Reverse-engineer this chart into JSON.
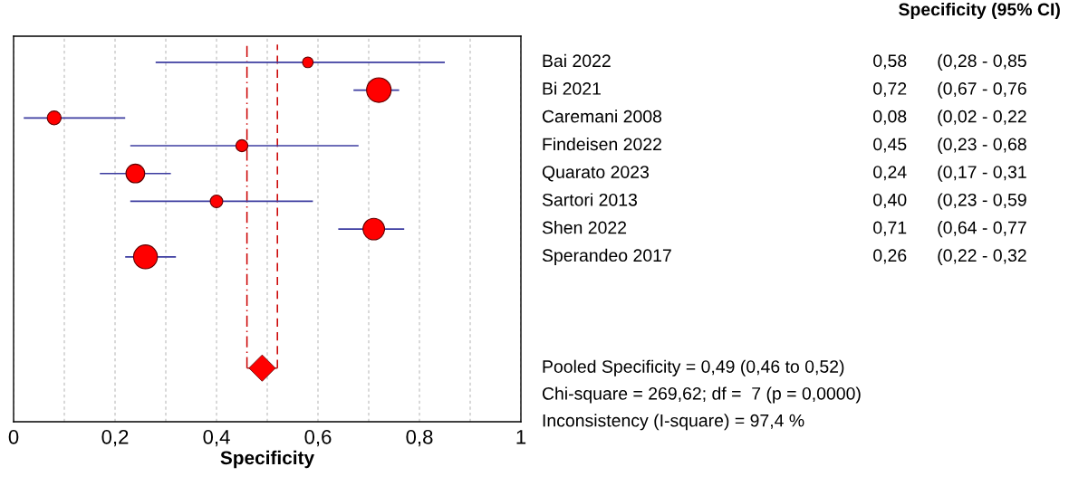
{
  "chart_data": {
    "type": "bubble",
    "orientation": "horizontal",
    "xlabel": "Specificity",
    "categories": [
      "Bai 2022",
      "Bi 2021",
      "Caremani 2008",
      "Findeisen 2022",
      "Quarato 2023",
      "Sartori 2013",
      "Shen 2022",
      "Sperandeo 2017",
      null,
      null,
      null,
      null
    ],
    "series": [
      {
        "color": "#ff0000",
        "values": [
          0.58,
          0.72,
          0.08,
          0.45,
          0.24,
          0.4,
          0.71,
          0.26,
          null,
          null,
          null,
          null
        ],
        "errors": [
          [
            0.28,
            0.85
          ],
          [
            0.67,
            0.76
          ],
          [
            0.02,
            0.22
          ],
          [
            0.23,
            0.68
          ],
          [
            0.17,
            0.31
          ],
          [
            0.23,
            0.59
          ],
          [
            0.64,
            0.77
          ],
          [
            0.22,
            0.32
          ],
          null,
          null,
          null,
          null
        ],
        "sizes": [
          0.19,
          1,
          0.32,
          0.24,
          0.58,
          0.26,
          0.77,
          0.95,
          null,
          null,
          null,
          null
        ],
        "value_labels": [
          "0,58",
          "0,72",
          "0,08",
          "0,45",
          "0,24",
          "0,40",
          "0,71",
          "0,26",
          null,
          null,
          null,
          null
        ]
      },
      {
        "type": "scatter",
        "marker": "diamond",
        "color": "#ff0000",
        "values": [
          null,
          null,
          null,
          null,
          null,
          null,
          null,
          null,
          null,
          null,
          null,
          0.49
        ],
        "errors": [
          null,
          null,
          null,
          null,
          null,
          null,
          null,
          null,
          null,
          null,
          null,
          [
            0.46,
            0.52
          ]
        ]
      }
    ],
    "xlim": [
      0,
      1
    ],
    "xticks": [
      0,
      {
        "value": 0.1,
        "label": null
      },
      {
        "value": 0.2,
        "label": "0,2"
      },
      {
        "value": 0.3,
        "label": null
      },
      {
        "value": 0.4,
        "label": "0,4"
      },
      {
        "value": 0.5,
        "label": null
      },
      {
        "value": 0.6,
        "label": "0,6"
      },
      {
        "value": 0.7,
        "label": null
      },
      {
        "value": 0.8,
        "label": "0,8"
      },
      {
        "value": 0.9,
        "label": null
      },
      1
    ],
    "ref_lines": [
      {
        "axis": "x",
        "value": 0.46,
        "color": "#cc0000",
        "line_style": "dashdot"
      },
      {
        "axis": "x",
        "value": 0.52,
        "color": "#cc0000",
        "line_style": "dashed"
      }
    ],
    "grid": "x",
    "tick_labels": "x",
    "annotations": [
      "Specificity (95% CI)",
      "(0,28 - 0,85",
      "(0,67 - 0,76",
      "(0,02 - 0,22",
      "(0,23 - 0,68",
      "(0,17 - 0,31",
      "(0,23 - 0,59",
      "(0,64 - 0,77",
      "(0,22 - 0,32",
      "Pooled Specificity = 0,49 (0,46 to 0,52)",
      "Chi-square = 269,62; df =  7 (p = 0,0000)",
      "Inconsistency (I-square) = 97,4 %"
    ]
  }
}
